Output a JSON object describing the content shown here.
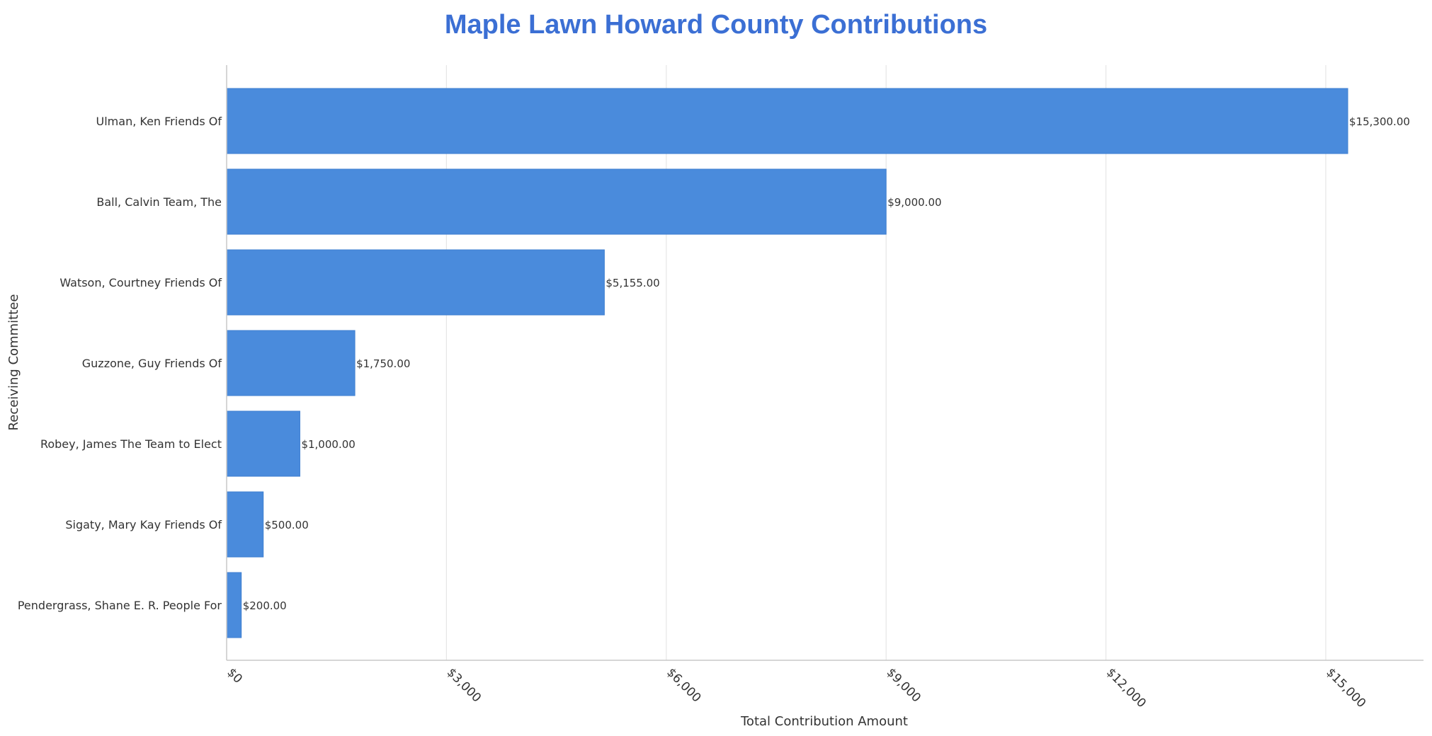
{
  "chart_data": {
    "type": "bar",
    "orientation": "horizontal",
    "title": "Maple Lawn Howard County Contributions",
    "xlabel": "Total Contribution Amount",
    "ylabel": "Receiving Committee",
    "categories": [
      "Ulman, Ken Friends Of",
      "Ball, Calvin Team, The",
      "Watson, Courtney Friends Of",
      "Guzzone, Guy Friends Of",
      "Robey, James The Team to Elect",
      "Sigaty, Mary Kay Friends Of",
      "Pendergrass, Shane E. R. People For"
    ],
    "values": [
      15300,
      9000,
      5155,
      1750,
      1000,
      500,
      200
    ],
    "data_labels": [
      "$15,300.00",
      "$9,000.00",
      "$5,155.00",
      "$1,750.00",
      "$1,000.00",
      "$500.00",
      "$200.00"
    ],
    "xticks": [
      0,
      3000,
      6000,
      9000,
      12000,
      15000
    ],
    "xtick_labels": [
      "$0",
      "$3,000",
      "$6,000",
      "$9,000",
      "$12,000",
      "$15,000"
    ],
    "xlim": [
      0,
      16250
    ],
    "grid": "vertical",
    "bar_color": "#4a8bdc",
    "title_color": "#3b6fd4"
  }
}
